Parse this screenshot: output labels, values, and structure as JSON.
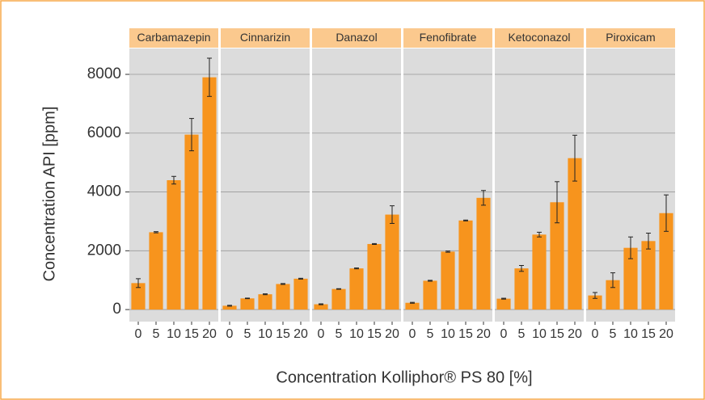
{
  "chart_data": {
    "type": "bar",
    "ylabel": "Concentration API [ppm]",
    "xlabel": "Concentration Kolliphor® PS 80 [%]",
    "categories": [
      "0",
      "5",
      "10",
      "15",
      "20"
    ],
    "facets": [
      {
        "name": "Carbamazepin",
        "values": [
          900,
          2630,
          4400,
          5950,
          7900
        ],
        "errors": [
          150,
          20,
          130,
          550,
          650
        ]
      },
      {
        "name": "Cinnarizin",
        "values": [
          130,
          380,
          520,
          870,
          1050
        ],
        "errors": [
          15,
          10,
          15,
          15,
          15
        ]
      },
      {
        "name": "Danazol",
        "values": [
          180,
          700,
          1400,
          2230,
          3230
        ],
        "errors": [
          15,
          10,
          15,
          15,
          300
        ]
      },
      {
        "name": "Fenofibrate",
        "values": [
          230,
          980,
          1970,
          3030,
          3800
        ],
        "errors": [
          15,
          15,
          20,
          15,
          250
        ]
      },
      {
        "name": "Ketoconazol",
        "values": [
          370,
          1400,
          2550,
          3650,
          5150
        ],
        "errors": [
          15,
          100,
          80,
          700,
          780
        ]
      },
      {
        "name": "Piroxicam",
        "values": [
          480,
          1000,
          2100,
          2330,
          3280
        ],
        "errors": [
          100,
          250,
          370,
          270,
          620
        ]
      }
    ],
    "color": "#f7941d",
    "strip_color": "#fbc98e",
    "panel_color": "#dcdcdc",
    "ylim": [
      -410,
      8880
    ],
    "yticks": [
      0,
      2000,
      4000,
      6000,
      8000
    ],
    "grid": true
  }
}
